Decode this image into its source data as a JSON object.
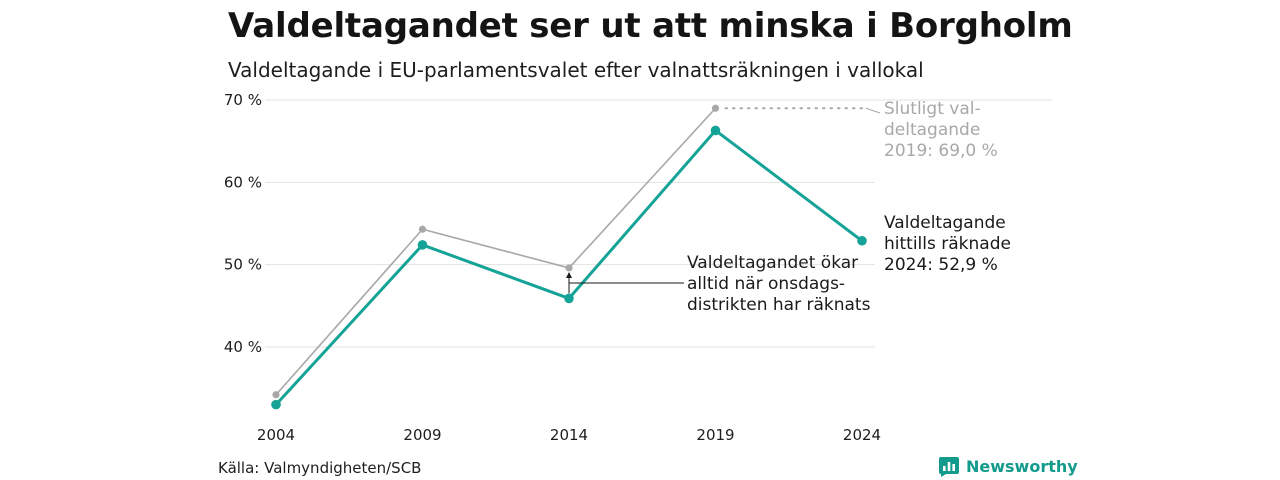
{
  "header": {
    "title": "Valdeltagandet ser ut att minska i Borgholm",
    "subtitle": "Valdeltagande i EU-parlamentsvalet efter valnattsräkningen i vallokal"
  },
  "footer": {
    "source": "Källa: Valmyndigheten/SCB",
    "brand": "Newsworthy",
    "brand_icon": "bar-chart-speech-bubble-icon"
  },
  "colors": {
    "final": "#a8a8a8",
    "preliminary": "#14a396",
    "grid": "#e2e2e2",
    "brand": "#129a8c"
  },
  "chart_data": {
    "type": "line",
    "x": [
      "2004",
      "2009",
      "2014",
      "2019",
      "2024"
    ],
    "series": [
      {
        "key": "final",
        "values": [
          34.2,
          54.3,
          49.6,
          69.0,
          null
        ]
      },
      {
        "key": "preliminary",
        "values": [
          33.0,
          52.4,
          45.9,
          66.3,
          52.9
        ]
      }
    ],
    "yticks": [
      40,
      50,
      60,
      70
    ],
    "ytick_labels": [
      "40 %",
      "50 %",
      "60 %",
      "70 %"
    ],
    "ylim": [
      31.5,
      71
    ],
    "xlabel": "",
    "ylabel": "",
    "grid": true,
    "annotations": {
      "final_2019": [
        "Slutligt val-",
        "deltagande",
        "2019: 69,0 %"
      ],
      "preliminary_2024": [
        "Valdeltagande",
        "hittills räknade",
        "2024: 52,9 %"
      ],
      "gap_note": [
        "Valdeltagandet ökar",
        "alltid när onsdags-",
        "distrikten har räknats"
      ]
    }
  }
}
